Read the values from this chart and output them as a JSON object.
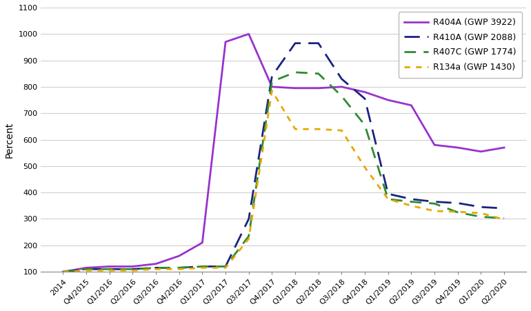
{
  "x_labels": [
    "2014",
    "Q4/2015",
    "Q1/2016",
    "Q2/2016",
    "Q3/2016",
    "Q4/2016",
    "Q1/2017",
    "Q2/2017",
    "Q3/2017",
    "Q4/2017",
    "Q1/2018",
    "Q2/2018",
    "Q3/2018",
    "Q4/2018",
    "Q1/2019",
    "Q2/2019",
    "Q3/2019",
    "Q4/2019",
    "Q1/2020",
    "Q2/2020"
  ],
  "R404A": [
    100,
    115,
    120,
    120,
    130,
    160,
    210,
    970,
    1000,
    800,
    795,
    795,
    800,
    780,
    750,
    730,
    580,
    570,
    555,
    570
  ],
  "R410A": [
    100,
    110,
    110,
    110,
    115,
    115,
    120,
    120,
    300,
    840,
    965,
    965,
    830,
    755,
    395,
    375,
    365,
    360,
    345,
    340
  ],
  "R407C": [
    100,
    110,
    110,
    110,
    115,
    115,
    120,
    120,
    235,
    820,
    855,
    850,
    765,
    655,
    375,
    365,
    358,
    325,
    308,
    303
  ],
  "R134a": [
    100,
    105,
    105,
    105,
    110,
    110,
    115,
    115,
    225,
    785,
    640,
    640,
    635,
    495,
    375,
    350,
    330,
    327,
    322,
    298
  ],
  "series": [
    {
      "label": "R404A (GWP 3922)",
      "color": "#9932CC",
      "linestyle": "-",
      "dashes": null,
      "lw": 2.0
    },
    {
      "label": "R410A (GWP 2088)",
      "color": "#1a237e",
      "linestyle": "--",
      "dashes": [
        8,
        4
      ],
      "lw": 2.0
    },
    {
      "label": "R407C (GWP 1774)",
      "color": "#2e8b2e",
      "linestyle": "--",
      "dashes": [
        6,
        4
      ],
      "lw": 2.0
    },
    {
      "label": "R134a (GWP 1430)",
      "color": "#e6a800",
      "linestyle": "--",
      "dashes": [
        3,
        3
      ],
      "lw": 2.0
    }
  ],
  "ylabel": "Percent",
  "ylim": [
    100,
    1100
  ],
  "yticks": [
    100,
    200,
    300,
    400,
    500,
    600,
    700,
    800,
    900,
    1000,
    1100
  ],
  "background_color": "#ffffff",
  "grid_color": "#d0d0d0",
  "axis_fontsize": 10,
  "tick_fontsize": 8,
  "legend_fontsize": 9
}
